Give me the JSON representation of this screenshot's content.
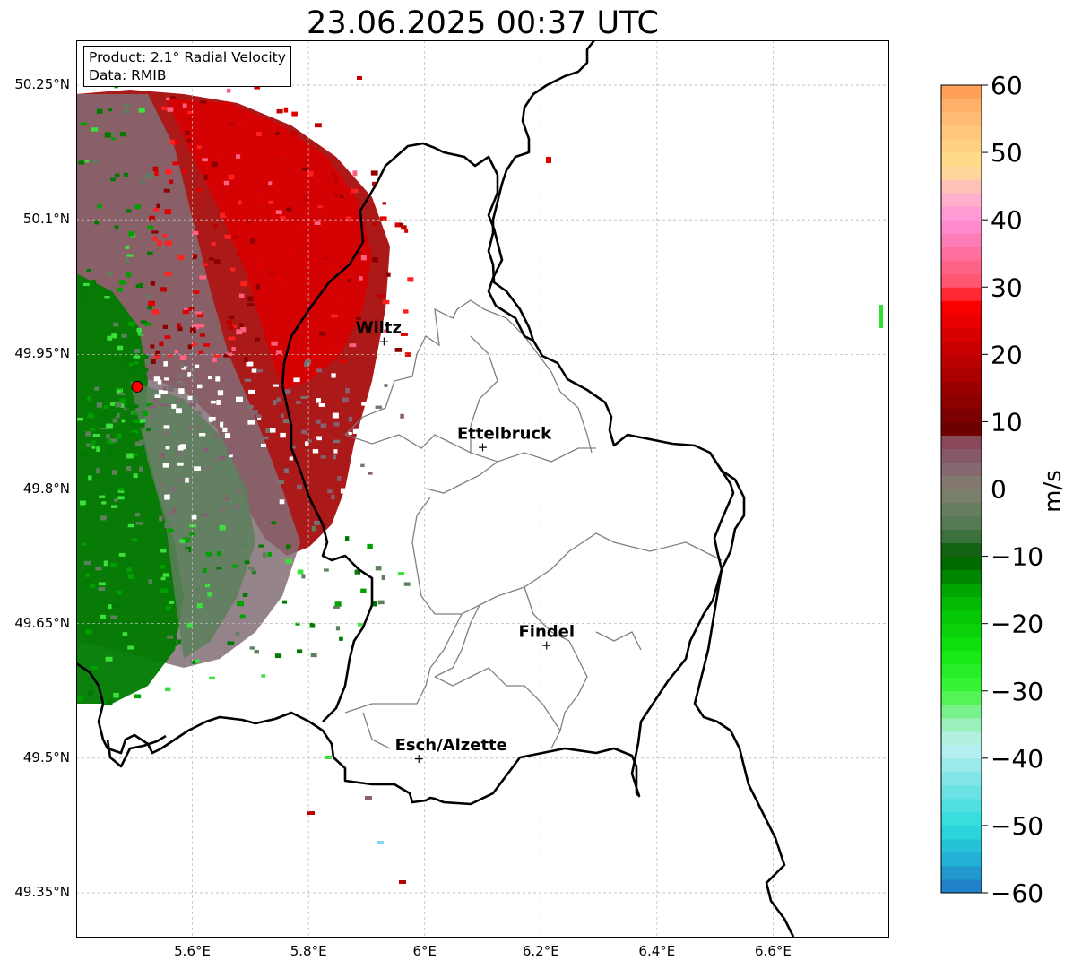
{
  "title": "23.06.2025 00:37 UTC",
  "info_box": {
    "product": "Product: 2.1° Radial Velocity",
    "data": "Data: RMIB"
  },
  "lat_ticks": [
    "50.25°N",
    "50.1°N",
    "49.95°N",
    "49.8°N",
    "49.65°N",
    "49.5°N",
    "49.35°N"
  ],
  "lat_values": [
    50.25,
    50.1,
    49.95,
    49.8,
    49.65,
    49.5,
    49.35
  ],
  "lon_ticks": [
    "5.6°E",
    "5.8°E",
    "6°E",
    "6.2°E",
    "6.4°E",
    "6.6°E"
  ],
  "lon_values": [
    5.6,
    5.8,
    6.0,
    6.2,
    6.4,
    6.6
  ],
  "extent": {
    "lon_min": 5.4,
    "lon_max": 6.8,
    "lat_min": 49.3,
    "lat_max": 50.3
  },
  "cities": [
    {
      "name": "Wiltz",
      "lon": 5.93,
      "lat": 49.965
    },
    {
      "name": "Ettelbruck",
      "lon": 6.1,
      "lat": 49.847
    },
    {
      "name": "Findel",
      "lon": 6.21,
      "lat": 49.626
    },
    {
      "name": "Esch/Alzette",
      "lon": 5.99,
      "lat": 49.5
    }
  ],
  "radar_site": {
    "lon": 5.505,
    "lat": 49.914
  },
  "colorbar": {
    "label": "m/s",
    "min": -60,
    "max": 60,
    "tick_values": [
      -60,
      -50,
      -40,
      -30,
      -20,
      -10,
      0,
      10,
      20,
      30,
      40,
      50,
      60
    ],
    "tick_labels": [
      "−60",
      "−50",
      "−40",
      "−30",
      "−20",
      "−10",
      "0",
      "10",
      "20",
      "30",
      "40",
      "50",
      "60"
    ],
    "stops": [
      {
        "v": -60,
        "c": "#1f77c4"
      },
      {
        "v": -55,
        "c": "#22b0d6"
      },
      {
        "v": -50,
        "c": "#2ddcdc"
      },
      {
        "v": -42,
        "c": "#8ee6e8"
      },
      {
        "v": -38,
        "c": "#bff0f2"
      },
      {
        "v": -34,
        "c": "#8cf0a8"
      },
      {
        "v": -30,
        "c": "#3ef53c"
      },
      {
        "v": -24,
        "c": "#10e610"
      },
      {
        "v": -16,
        "c": "#00b400"
      },
      {
        "v": -10,
        "c": "#005a00"
      },
      {
        "v": -6,
        "c": "#4e7a4e"
      },
      {
        "v": 0,
        "c": "#808070"
      },
      {
        "v": 4,
        "c": "#866070"
      },
      {
        "v": 8,
        "c": "#8a4050"
      },
      {
        "v": 9,
        "c": "#6e0000"
      },
      {
        "v": 18,
        "c": "#b20000"
      },
      {
        "v": 28,
        "c": "#ff0000"
      },
      {
        "v": 30,
        "c": "#ff5066"
      },
      {
        "v": 40,
        "c": "#ff90d8"
      },
      {
        "v": 44,
        "c": "#ffb8c8"
      },
      {
        "v": 48,
        "c": "#ffe08c"
      },
      {
        "v": 56,
        "c": "#ffb870"
      },
      {
        "v": 60,
        "c": "#ff9850"
      }
    ]
  },
  "colors": {
    "border": "#000000",
    "canton": "#808080",
    "grid": "#bbbbbb",
    "radar_site": "#ff0000"
  }
}
